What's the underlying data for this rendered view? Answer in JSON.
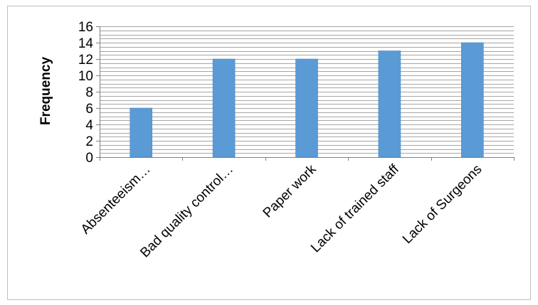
{
  "chart_data": {
    "type": "bar",
    "title": "",
    "xlabel": "",
    "ylabel": "Frequency",
    "categories": [
      "Absenteeism…",
      "Bad quality control…",
      "Paper work",
      "Lack of trained staff",
      "Lack of Surgeons"
    ],
    "values": [
      6,
      12,
      12,
      13,
      14
    ],
    "ylim": [
      0,
      16
    ],
    "yticks": [
      "0",
      "2",
      "4",
      "6",
      "8",
      "10",
      "12",
      "14",
      "16"
    ],
    "minor_gridlines": true,
    "legend": "none"
  },
  "colors": {
    "bar": "#5b9bd5",
    "bar_edge": "#4a89c2",
    "gridline": "#a6a6a6",
    "axis": "#808080",
    "frame": "#bfbfbf"
  }
}
